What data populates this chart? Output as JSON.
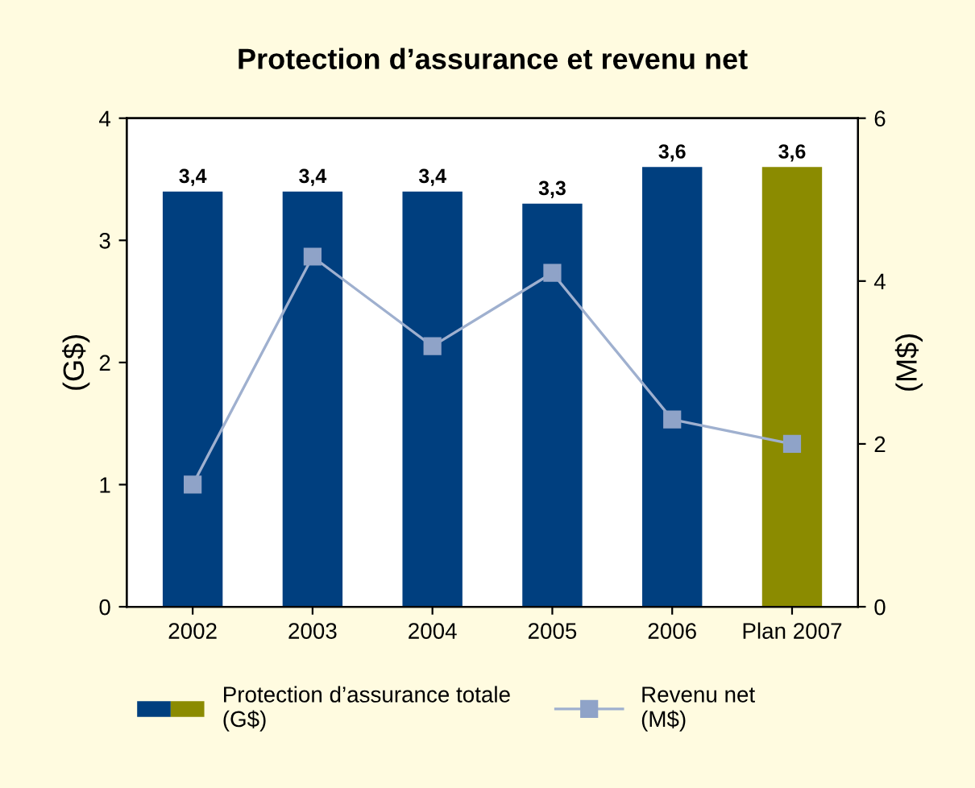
{
  "chart_data": {
    "type": "bar",
    "title": "Protection d’assurance et revenu net",
    "ylabel": "(G$)",
    "y2label": "(M$)",
    "categories": [
      "2002",
      "2003",
      "2004",
      "2005",
      "2006",
      "Plan 2007"
    ],
    "series": [
      {
        "name": "Protection d’assurance totale\n(G$)",
        "colors": [
          "#003f7f",
          "#003f7f",
          "#003f7f",
          "#003f7f",
          "#003f7f",
          "#8b8b00"
        ],
        "values": [
          3.4,
          3.4,
          3.4,
          3.3,
          3.6,
          3.6
        ],
        "value_labels": [
          "3,4",
          "3,4",
          "3,4",
          "3,3",
          "3,6",
          "3,6"
        ]
      },
      {
        "name": "Revenu net\n(M$)",
        "type": "line",
        "axis": "y2",
        "color": "#9fb0cf",
        "marker": "square",
        "values": [
          1.5,
          4.3,
          3.2,
          4.1,
          2.3,
          2.0
        ]
      }
    ],
    "ylim": [
      0,
      4
    ],
    "yticks": [
      0,
      1,
      2,
      3,
      4
    ],
    "y2lim": [
      0,
      6
    ],
    "y2ticks": [
      0,
      2,
      4,
      6
    ],
    "grid": false,
    "legend": "bottom"
  }
}
